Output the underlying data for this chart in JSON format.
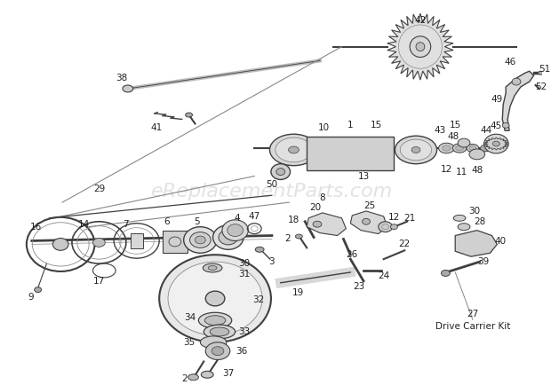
{
  "bg_color": "#ffffff",
  "watermark": "eReplacementParts.com",
  "fig_width": 6.2,
  "fig_height": 4.34,
  "dpi": 100
}
